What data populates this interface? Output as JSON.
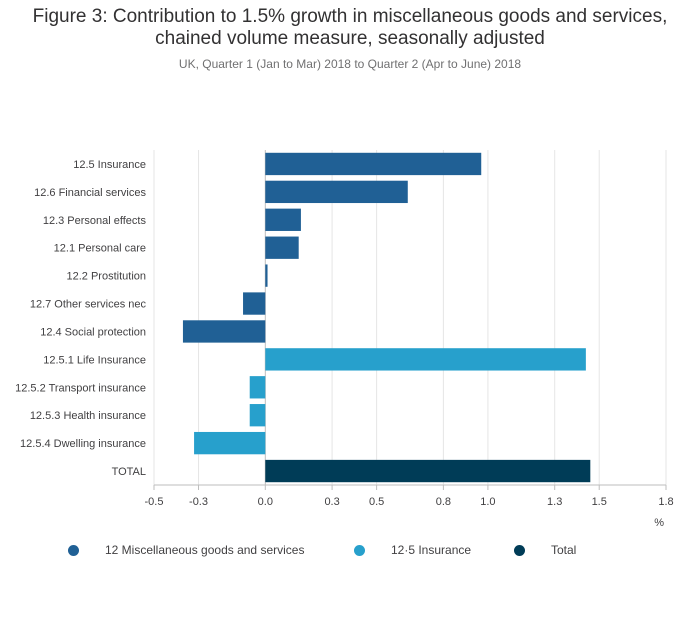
{
  "title_line1": "Figure 3: Contribution to 1.5% growth in miscellaneous goods and services,",
  "title_line2": "chained volume measure, seasonally adjusted",
  "subtitle": "UK, Quarter 1 (Jan to Mar) 2018 to Quarter 2 (Apr to June) 2018",
  "colors": {
    "misc": "#206095",
    "insurance": "#27a0cc",
    "total": "#003c57",
    "grid": "#e6e6e6",
    "axis": "#bdbdbd"
  },
  "legend": [
    {
      "label": "12 Miscellaneous goods and services",
      "color_key": "misc"
    },
    {
      "label": "12·5 Insurance",
      "color_key": "insurance"
    },
    {
      "label": "Total",
      "color_key": "total"
    }
  ],
  "chart_data": {
    "type": "bar",
    "orientation": "horizontal",
    "unit_label": "%",
    "xlim": [
      -0.5,
      1.8
    ],
    "x_ticks": [
      -0.5,
      -0.3,
      0.0,
      0.3,
      0.5,
      0.8,
      1.0,
      1.3,
      1.5,
      1.8
    ],
    "tick_labels": [
      "-0.5",
      "-0.3",
      "0.0",
      "0.3",
      "0.5",
      "0.8",
      "1.0",
      "1.3",
      "1.5",
      "1.8"
    ],
    "grid": true,
    "legend_position": "bottom",
    "categories": [
      "12.5 Insurance",
      "12.6 Financial services",
      "12.3 Personal effects",
      "12.1 Personal care",
      "12.2 Prostitution",
      "12.7 Other services nec",
      "12.4 Social protection",
      "12.5.1 Life Insurance",
      "12.5.2 Transport insurance",
      "12.5.3 Health insurance",
      "12.5.4 Dwelling insurance",
      "TOTAL"
    ],
    "values": [
      0.97,
      0.64,
      0.16,
      0.15,
      0.01,
      -0.1,
      -0.37,
      1.44,
      -0.07,
      -0.07,
      -0.32,
      1.46
    ],
    "series_of_category": [
      "misc",
      "misc",
      "misc",
      "misc",
      "misc",
      "misc",
      "misc",
      "insurance",
      "insurance",
      "insurance",
      "insurance",
      "total"
    ]
  }
}
